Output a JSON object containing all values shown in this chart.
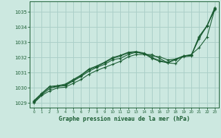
{
  "title": "Graphe pression niveau de la mer (hPa)",
  "bg_color": "#cce8e0",
  "grid_color": "#aacfc8",
  "line_color": "#1a5c32",
  "marker_color": "#1a5c32",
  "xlim": [
    -0.5,
    23.5
  ],
  "ylim": [
    1028.7,
    1035.7
  ],
  "yticks": [
    1029,
    1030,
    1031,
    1032,
    1033,
    1034,
    1035
  ],
  "xticks": [
    0,
    1,
    2,
    3,
    4,
    5,
    6,
    7,
    8,
    9,
    10,
    11,
    12,
    13,
    14,
    15,
    16,
    17,
    18,
    19,
    20,
    21,
    22,
    23
  ],
  "series": [
    [
      1029.0,
      1029.5,
      1029.8,
      1030.0,
      1030.05,
      1030.3,
      1030.55,
      1030.9,
      1031.15,
      1031.35,
      1031.55,
      1031.75,
      1032.05,
      1032.2,
      1032.2,
      1032.2,
      1031.95,
      1031.65,
      1031.6,
      1032.1,
      1032.15,
      1033.25,
      1034.1,
      1035.15
    ],
    [
      1029.05,
      1029.55,
      1029.95,
      1030.1,
      1030.15,
      1030.45,
      1030.75,
      1031.1,
      1031.35,
      1031.55,
      1031.85,
      1031.95,
      1032.2,
      1032.35,
      1032.25,
      1032.1,
      1032.05,
      1031.85,
      1031.9,
      1032.1,
      1032.2,
      1032.65,
      1033.35,
      1035.2
    ],
    [
      1029.1,
      1029.6,
      1030.05,
      1030.1,
      1030.2,
      1030.5,
      1030.8,
      1031.2,
      1031.4,
      1031.65,
      1031.95,
      1032.1,
      1032.3,
      1032.35,
      1032.25,
      1031.95,
      1031.75,
      1031.65,
      1031.85,
      1032.05,
      1032.1,
      1033.35,
      1034.05,
      1035.25
    ],
    [
      1029.15,
      1029.65,
      1030.1,
      1030.15,
      1030.25,
      1030.55,
      1030.85,
      1031.25,
      1031.45,
      1031.7,
      1032.0,
      1032.15,
      1032.35,
      1032.4,
      1032.3,
      1032.0,
      1031.8,
      1031.7,
      1031.9,
      1032.1,
      1032.15,
      1033.4,
      1034.1,
      1035.3
    ]
  ]
}
